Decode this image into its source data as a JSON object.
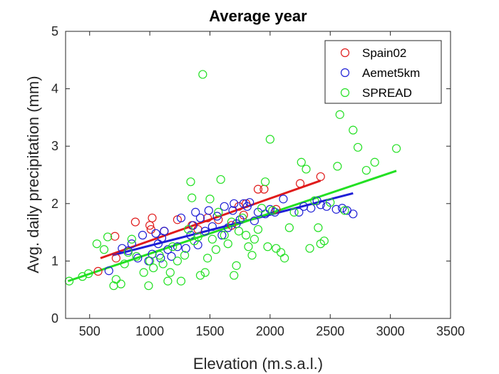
{
  "chart_data": {
    "type": "scatter",
    "title": "Average year",
    "xlabel": "Elevation (m.s.a.l.)",
    "ylabel": "Avg. daily precipitation (mm)",
    "xlim": [
      300,
      3500
    ],
    "ylim": [
      0,
      5
    ],
    "xticks": [
      500,
      1000,
      1500,
      2000,
      2500,
      3000,
      3500
    ],
    "yticks": [
      0,
      1,
      2,
      3,
      4,
      5
    ],
    "grid": false,
    "legend_placement": "top-right",
    "series": [
      {
        "name": "Spain02",
        "color": "#e01b1b",
        "points": [
          [
            570,
            0.82
          ],
          [
            720,
            1.05
          ],
          [
            710,
            1.43
          ],
          [
            880,
            1.68
          ],
          [
            1000,
            1.62
          ],
          [
            1010,
            1.55
          ],
          [
            1020,
            1.75
          ],
          [
            1120,
            1.52
          ],
          [
            1230,
            1.72
          ],
          [
            1350,
            1.62
          ],
          [
            1400,
            1.55
          ],
          [
            1480,
            1.75
          ],
          [
            1570,
            1.72
          ],
          [
            1680,
            1.62
          ],
          [
            1740,
            1.95
          ],
          [
            1780,
            1.8
          ],
          [
            1800,
            2.0
          ],
          [
            1900,
            2.25
          ],
          [
            1950,
            2.25
          ],
          [
            2050,
            1.9
          ],
          [
            2250,
            2.35
          ],
          [
            2420,
            2.47
          ]
        ],
        "fit": [
          [
            590,
            1.05
          ],
          [
            2420,
            2.4
          ]
        ]
      },
      {
        "name": "Aemet5km",
        "color": "#1f1fd6",
        "points": [
          [
            660,
            0.83
          ],
          [
            770,
            1.22
          ],
          [
            820,
            1.18
          ],
          [
            850,
            1.3
          ],
          [
            900,
            1.05
          ],
          [
            940,
            1.45
          ],
          [
            990,
            1.0
          ],
          [
            1020,
            1.12
          ],
          [
            1050,
            1.48
          ],
          [
            1070,
            1.3
          ],
          [
            1090,
            1.05
          ],
          [
            1100,
            1.4
          ],
          [
            1120,
            1.52
          ],
          [
            1150,
            1.2
          ],
          [
            1180,
            1.08
          ],
          [
            1230,
            1.25
          ],
          [
            1260,
            1.75
          ],
          [
            1300,
            1.22
          ],
          [
            1340,
            1.45
          ],
          [
            1360,
            1.62
          ],
          [
            1380,
            1.85
          ],
          [
            1400,
            1.28
          ],
          [
            1420,
            1.75
          ],
          [
            1460,
            1.52
          ],
          [
            1490,
            1.88
          ],
          [
            1520,
            1.6
          ],
          [
            1560,
            1.78
          ],
          [
            1600,
            1.45
          ],
          [
            1620,
            1.95
          ],
          [
            1650,
            1.58
          ],
          [
            1690,
            1.88
          ],
          [
            1700,
            2.0
          ],
          [
            1720,
            1.65
          ],
          [
            1750,
            1.72
          ],
          [
            1780,
            2.0
          ],
          [
            1810,
            1.95
          ],
          [
            1830,
            2.02
          ],
          [
            1870,
            1.7
          ],
          [
            1900,
            1.85
          ],
          [
            1960,
            1.82
          ],
          [
            2000,
            1.9
          ],
          [
            2040,
            1.85
          ],
          [
            2110,
            2.08
          ],
          [
            2240,
            1.85
          ],
          [
            2280,
            1.95
          ],
          [
            2340,
            1.92
          ],
          [
            2390,
            2.05
          ],
          [
            2420,
            1.98
          ],
          [
            2470,
            1.95
          ],
          [
            2550,
            1.9
          ],
          [
            2600,
            1.92
          ],
          [
            2640,
            1.88
          ],
          [
            2690,
            1.82
          ]
        ],
        "fit": [
          [
            690,
            1.1
          ],
          [
            2690,
            2.18
          ]
        ]
      },
      {
        "name": "SPREAD",
        "color": "#23e023",
        "points": [
          [
            330,
            0.65
          ],
          [
            440,
            0.73
          ],
          [
            490,
            0.78
          ],
          [
            560,
            1.3
          ],
          [
            620,
            1.2
          ],
          [
            650,
            1.42
          ],
          [
            700,
            0.57
          ],
          [
            720,
            0.68
          ],
          [
            760,
            0.6
          ],
          [
            790,
            0.95
          ],
          [
            820,
            1.15
          ],
          [
            850,
            1.38
          ],
          [
            890,
            1.08
          ],
          [
            950,
            0.8
          ],
          [
            990,
            0.57
          ],
          [
            1000,
            1.0
          ],
          [
            1030,
            0.88
          ],
          [
            1080,
            1.1
          ],
          [
            1110,
            0.95
          ],
          [
            1150,
            0.65
          ],
          [
            1170,
            0.8
          ],
          [
            1190,
            1.25
          ],
          [
            1230,
            1.0
          ],
          [
            1260,
            0.65
          ],
          [
            1290,
            1.1
          ],
          [
            1320,
            1.55
          ],
          [
            1340,
            2.38
          ],
          [
            1350,
            2.1
          ],
          [
            1370,
            1.35
          ],
          [
            1400,
            1.42
          ],
          [
            1420,
            0.75
          ],
          [
            1440,
            4.25
          ],
          [
            1460,
            0.8
          ],
          [
            1480,
            1.05
          ],
          [
            1500,
            2.08
          ],
          [
            1520,
            1.38
          ],
          [
            1550,
            1.2
          ],
          [
            1570,
            1.85
          ],
          [
            1590,
            2.42
          ],
          [
            1620,
            1.45
          ],
          [
            1650,
            1.3
          ],
          [
            1680,
            1.68
          ],
          [
            1700,
            0.75
          ],
          [
            1720,
            0.92
          ],
          [
            1740,
            1.52
          ],
          [
            1770,
            1.75
          ],
          [
            1800,
            1.45
          ],
          [
            1820,
            1.25
          ],
          [
            1850,
            1.1
          ],
          [
            1870,
            1.38
          ],
          [
            1900,
            1.55
          ],
          [
            1930,
            1.92
          ],
          [
            1960,
            2.38
          ],
          [
            1980,
            1.25
          ],
          [
            2000,
            3.12
          ],
          [
            2020,
            1.88
          ],
          [
            2050,
            1.22
          ],
          [
            2090,
            1.15
          ],
          [
            2120,
            1.05
          ],
          [
            2160,
            1.58
          ],
          [
            2200,
            1.85
          ],
          [
            2260,
            2.72
          ],
          [
            2300,
            2.6
          ],
          [
            2330,
            1.22
          ],
          [
            2370,
            2.05
          ],
          [
            2400,
            1.58
          ],
          [
            2420,
            1.3
          ],
          [
            2450,
            1.35
          ],
          [
            2500,
            2.02
          ],
          [
            2560,
            2.65
          ],
          [
            2580,
            3.55
          ],
          [
            2620,
            1.88
          ],
          [
            2690,
            3.28
          ],
          [
            2730,
            2.98
          ],
          [
            2800,
            2.58
          ],
          [
            2870,
            2.72
          ],
          [
            3050,
            2.96
          ]
        ],
        "fit": [
          [
            320,
            0.65
          ],
          [
            3050,
            2.57
          ]
        ]
      }
    ]
  }
}
